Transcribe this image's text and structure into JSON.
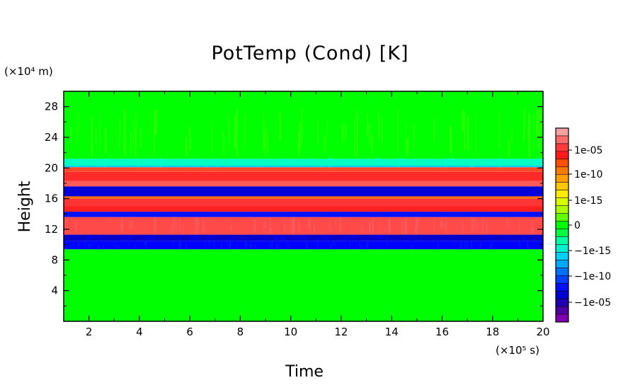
{
  "chart_data": {
    "type": "heatmap",
    "title": "PotTemp (Cond) [K]",
    "xlabel": "Time",
    "ylabel": "Height",
    "x_unit": "(×10⁵ s)",
    "y_unit": "(×10⁴ m)",
    "xlim": [
      1,
      20
    ],
    "ylim": [
      0,
      30
    ],
    "x_ticks": [
      "2",
      "4",
      "6",
      "8",
      "10",
      "12",
      "14",
      "16",
      "18",
      "20"
    ],
    "y_ticks": [
      "4",
      "8",
      "12",
      "16",
      "20",
      "24",
      "28"
    ],
    "colorbar": {
      "tick_labels": [
        "1e-05",
        "1e-10",
        "1e-15",
        "0",
        "−1e-15",
        "−1e-10",
        "−1e-05"
      ],
      "levels_top_to_bottom": [
        "#f8a0a0",
        "#ff6a6a",
        "#ff3a3a",
        "#ff1a1a",
        "#ff5000",
        "#ff7a00",
        "#ffa000",
        "#ffc800",
        "#ffec00",
        "#d8ff00",
        "#a8ff00",
        "#60ff00",
        "#00ff00",
        "#00ff40",
        "#00ffa0",
        "#00f0d0",
        "#00d0ff",
        "#00a8ff",
        "#0070ff",
        "#0040ff",
        "#0010ff",
        "#0000d0",
        "#2000b0",
        "#5000a0",
        "#8000b0"
      ]
    },
    "bands": [
      {
        "y0": 0,
        "y1": 9.4,
        "color": "#00ff00"
      },
      {
        "y0": 9.4,
        "y1": 10.5,
        "color": "#0000ff"
      },
      {
        "y0": 10.5,
        "y1": 11.3,
        "color": "#0000cc"
      },
      {
        "y0": 11.3,
        "y1": 13.6,
        "color": "#ff4a4a"
      },
      {
        "y0": 13.6,
        "y1": 14.3,
        "color": "#0010ff"
      },
      {
        "y0": 14.3,
        "y1": 15.0,
        "color": "#ff2020"
      },
      {
        "y0": 15.0,
        "y1": 16.0,
        "color": "#ff3535"
      },
      {
        "y0": 16.0,
        "y1": 16.3,
        "color": "#ff6a00"
      },
      {
        "y0": 16.3,
        "y1": 17.6,
        "color": "#0000d8"
      },
      {
        "y0": 17.6,
        "y1": 18.3,
        "color": "#ff5a5a"
      },
      {
        "y0": 18.3,
        "y1": 19.5,
        "color": "#ff2a2a"
      },
      {
        "y0": 19.5,
        "y1": 20.1,
        "color": "#ff4a2a"
      },
      {
        "y0": 20.1,
        "y1": 20.3,
        "color": "#00c8ff"
      },
      {
        "y0": 20.3,
        "y1": 21.2,
        "color": "#00ffc0"
      },
      {
        "y0": 21.2,
        "y1": 30,
        "color": "#00ff00"
      }
    ]
  }
}
